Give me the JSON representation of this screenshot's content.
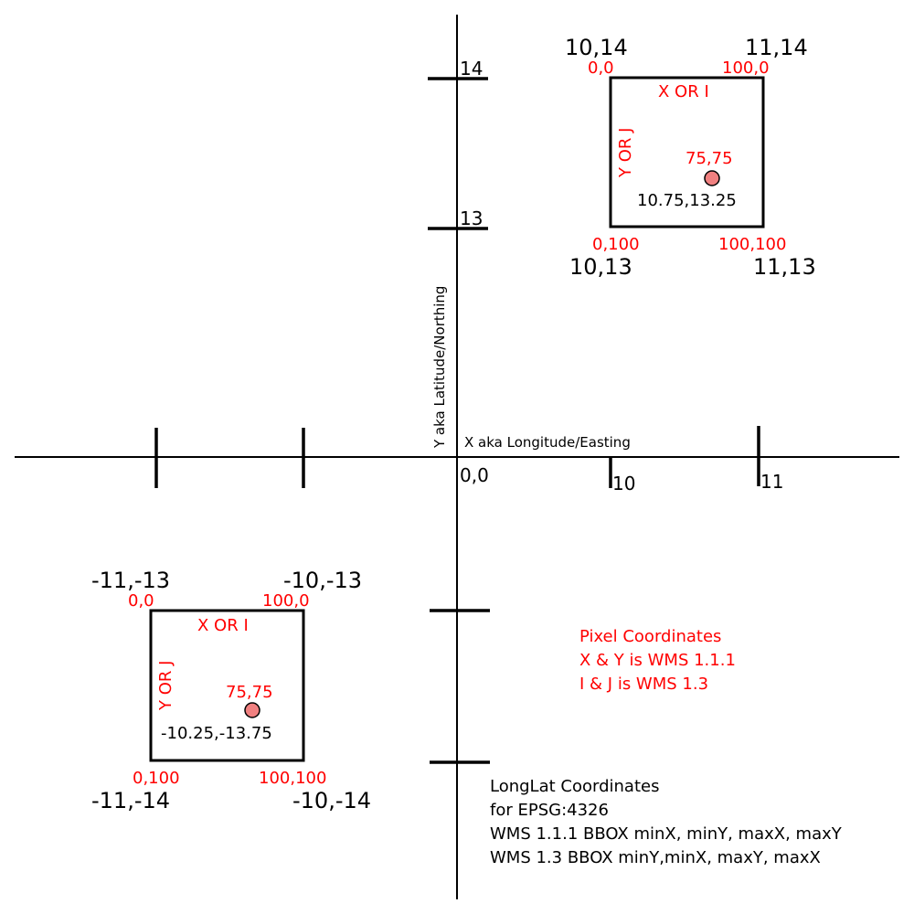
{
  "axes": {
    "x_label": "X aka Longitude/Easting",
    "y_label": "Y aka Latitude/Northing",
    "origin": "0,0",
    "x_ticks": [
      "10",
      "11"
    ],
    "y_ticks": [
      "14",
      "13"
    ]
  },
  "box_top": {
    "corner_tl_geo": "10,14",
    "corner_tr_geo": "11,14",
    "corner_bl_geo": "10,13",
    "corner_br_geo": "11,13",
    "corner_tl_px": "0,0",
    "corner_tr_px": "100,0",
    "corner_bl_px": "0,100",
    "corner_br_px": "100,100",
    "x_axis_label": "X OR I",
    "y_axis_label": "Y OR J",
    "point_px": "75,75",
    "point_geo": "10.75,13.25"
  },
  "box_bottom": {
    "corner_tl_geo": "-11,-13",
    "corner_tr_geo": "-10,-13",
    "corner_bl_geo": "-11,-14",
    "corner_br_geo": "-10,-14",
    "corner_tl_px": "0,0",
    "corner_tr_px": "100,0",
    "corner_bl_px": "0,100",
    "corner_br_px": "100,100",
    "x_axis_label": "X OR I",
    "y_axis_label": "Y OR J",
    "point_px": "75,75",
    "point_geo": "-10.25,-13.75"
  },
  "legend_pixel": {
    "line1": "Pixel Coordinates",
    "line2": "X & Y is WMS 1.1.1",
    "line3": "I & J is WMS 1.3"
  },
  "legend_longlat": {
    "line1": "LongLat Coordinates",
    "line2": "for EPSG:4326",
    "line3": "WMS 1.1.1 BBOX minX, minY, maxX, maxY",
    "line4": "WMS 1.3 BBOX minY,minX, maxY, maxX"
  },
  "colors": {
    "pixel_text": "#ff0000",
    "point_fill": "#f08080",
    "line": "#000000"
  }
}
